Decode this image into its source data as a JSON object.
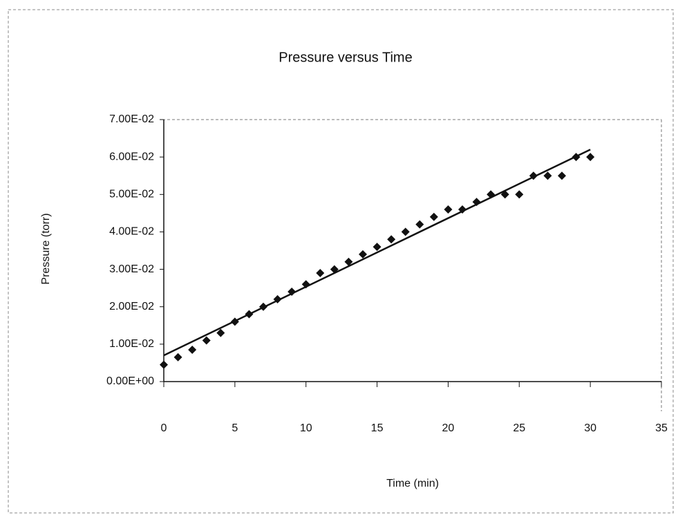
{
  "chart_data": {
    "type": "scatter",
    "title": "Pressure versus Time",
    "x_label": "Time (min)",
    "y_label": "Pressure (torr)",
    "series": [
      {
        "name": null,
        "color": "#111111",
        "x": [
          0,
          1,
          2,
          3,
          4,
          5,
          6,
          7,
          8,
          9,
          10,
          11,
          12,
          13,
          14,
          15,
          16,
          17,
          18,
          19,
          20,
          21,
          22,
          23,
          24,
          25,
          26,
          27,
          28,
          29,
          30
        ],
        "values": [
          0.0045,
          0.0065,
          0.0085,
          0.011,
          0.013,
          0.016,
          0.018,
          0.02,
          0.022,
          0.024,
          0.026,
          0.029,
          0.03,
          0.032,
          0.034,
          0.036,
          0.038,
          0.04,
          0.042,
          0.044,
          0.046,
          0.046,
          0.048,
          0.05,
          0.05,
          0.05,
          0.055,
          0.055,
          0.055,
          0.06,
          0.06
        ]
      }
    ],
    "trendline": {
      "x": [
        0,
        30
      ],
      "values": [
        0.007,
        0.062
      ],
      "color": "#111111"
    },
    "xlim": [
      0,
      35
    ],
    "xticks": [
      0,
      5,
      10,
      15,
      20,
      25,
      30,
      35
    ],
    "ylim": [
      0,
      0.07
    ],
    "yticks": [
      {
        "value": 0,
        "label": "0.00E+00"
      },
      {
        "value": 0.01,
        "label": "1.00E-02"
      },
      {
        "value": 0.02,
        "label": "2.00E-02"
      },
      {
        "value": 0.03,
        "label": "3.00E-02"
      },
      {
        "value": 0.04,
        "label": "4.00E-02"
      },
      {
        "value": 0.05,
        "label": "5.00E-02"
      },
      {
        "value": 0.06,
        "label": "6.00E-02"
      },
      {
        "value": 0.07,
        "label": "7.00E-02"
      }
    ],
    "grid": false
  }
}
